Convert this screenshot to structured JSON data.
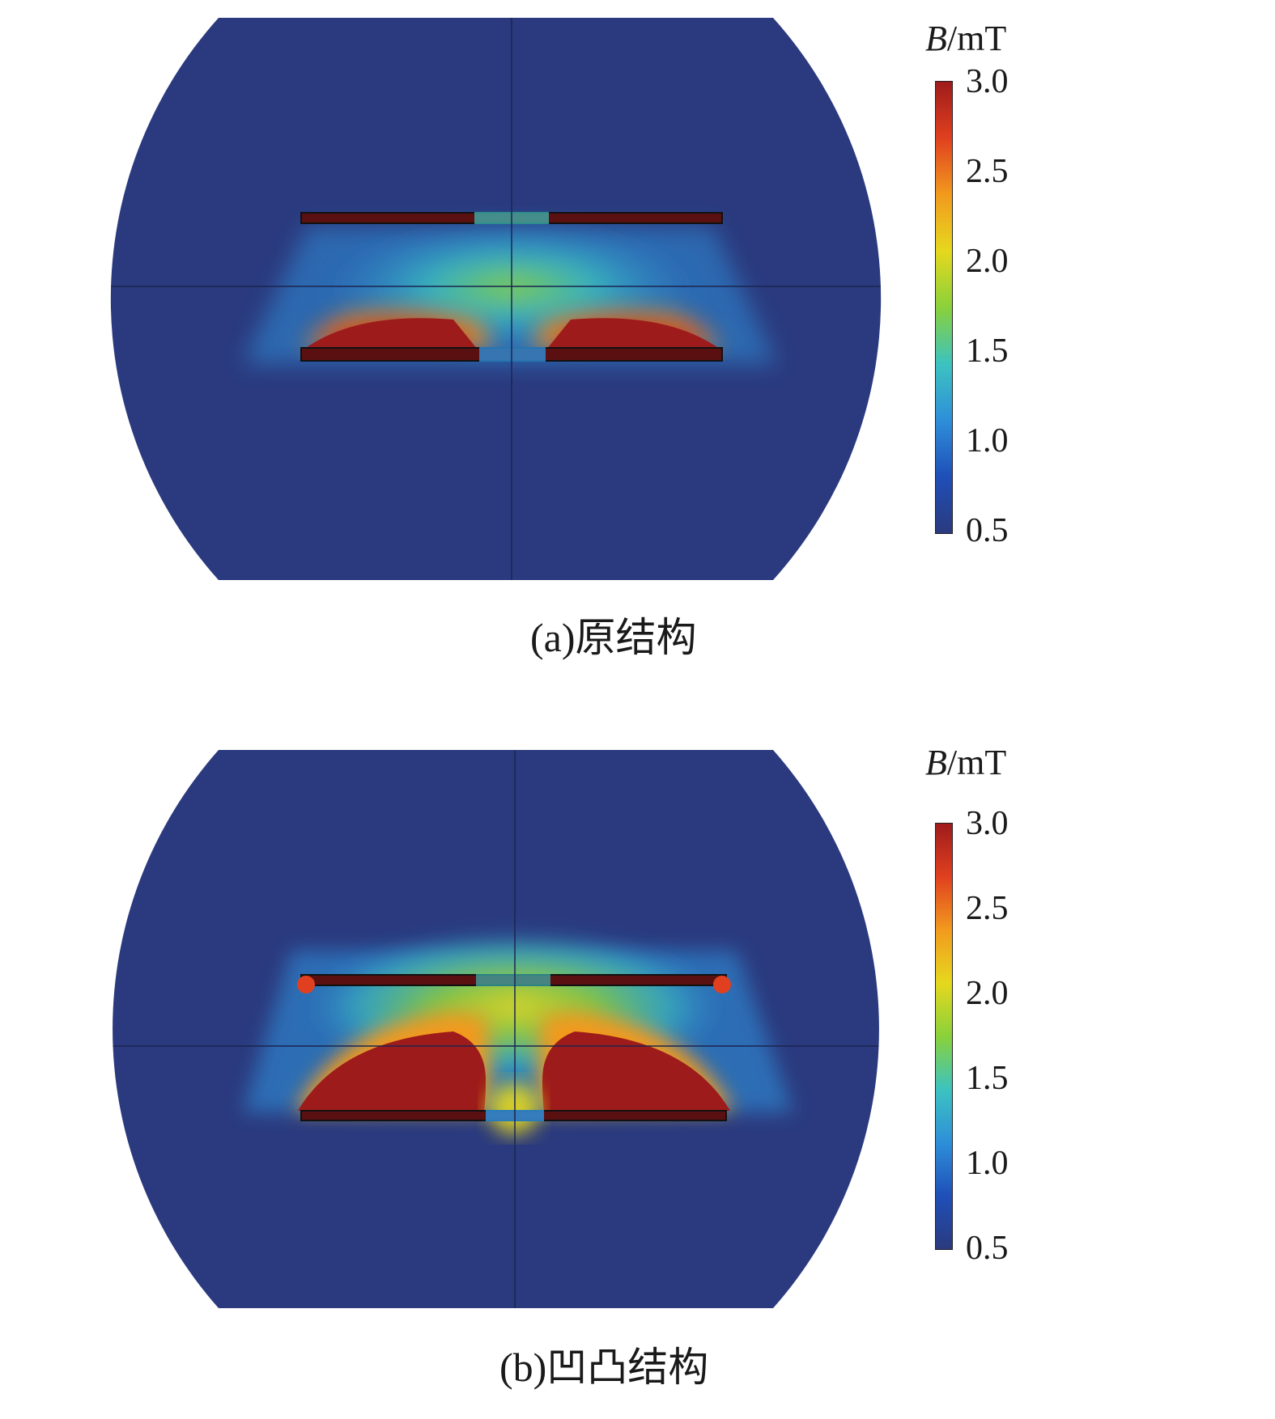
{
  "figures": [
    {
      "id": "a",
      "caption": "(a)原结构",
      "colorbar": {
        "title_symbol": "B",
        "title_unit": "/mT",
        "ticks": [
          "3.0",
          "2.5",
          "2.0",
          "1.5",
          "1.0",
          "0.5"
        ],
        "min": 0.5,
        "max": 3.0
      }
    },
    {
      "id": "b",
      "caption": "(b)凹凸结构",
      "colorbar": {
        "title_symbol": "B",
        "title_unit": "/mT",
        "ticks": [
          "3.0",
          "2.5",
          "2.0",
          "1.5",
          "1.0",
          "0.5"
        ],
        "min": 0.5,
        "max": 3.0
      }
    }
  ],
  "colormap": [
    "#2b3a7e",
    "#1f4fb8",
    "#2e8fd9",
    "#3cc3c0",
    "#8ad13a",
    "#e6d81e",
    "#f29a1e",
    "#e0401f",
    "#9e1b1b"
  ]
}
